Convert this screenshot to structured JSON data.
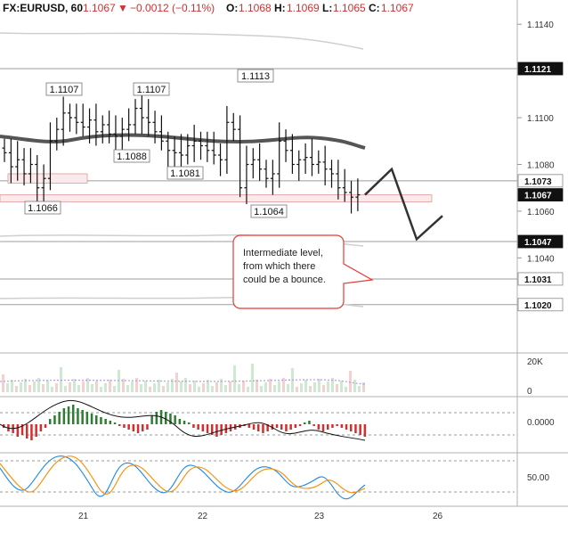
{
  "header": {
    "symbol": "FX:EURUSD, 60",
    "last": "1.1067",
    "change": "−0.0012 (−0.11%)",
    "o_label": "O:",
    "o": "1.1068",
    "h_label": "H:",
    "h": "1.1069",
    "l_label": "L:",
    "l": "1.1065",
    "c_label": "C:",
    "c": "1.1067"
  },
  "colors": {
    "up": "#2e7d32",
    "down": "#d32f2f",
    "level_line": "#9e9e9e",
    "price_tag": "#111111",
    "ma": "#555555",
    "callout_border": "#e53935"
  },
  "price_axis": {
    "ticks": [
      "1.1140",
      "1.1100",
      "1.1080",
      "1.1060",
      "1.1040"
    ],
    "tick_values": [
      1.114,
      1.11,
      1.108,
      1.106,
      1.104
    ],
    "tags": [
      {
        "label": "1.1121",
        "value": 1.1121,
        "style": "dark"
      },
      {
        "label": "1.1073",
        "value": 1.1073,
        "style": "light"
      },
      {
        "label": "1.1067",
        "value": 1.1067,
        "style": "dark"
      },
      {
        "label": "1.1047",
        "value": 1.1047,
        "style": "dark"
      },
      {
        "label": "1.1031",
        "value": 1.1031,
        "style": "light"
      },
      {
        "label": "1.1020",
        "value": 1.102,
        "style": "light"
      }
    ]
  },
  "volume_axis": {
    "ticks": [
      "20K",
      "0"
    ]
  },
  "indicator1_axis": {
    "ticks": [
      "0.0000"
    ]
  },
  "indicator2_axis": {
    "ticks": [
      "50.00"
    ]
  },
  "time_axis": {
    "ticks": [
      "21",
      "22",
      "23",
      "26"
    ]
  },
  "callout": {
    "lines": [
      "Intermediate level,",
      "from which there",
      "could be a bounce."
    ]
  },
  "chart_data": {
    "type": "candlestick",
    "symbol": "EURUSD",
    "interval": "60",
    "ylim": [
      1.1016,
      1.1148
    ],
    "horizontal_levels": [
      1.1121,
      1.1073,
      1.1047,
      1.1031,
      1.102
    ],
    "support_zones": [
      [
        1.1072,
        1.1076
      ],
      [
        1.1064,
        1.1067
      ]
    ],
    "price_annotations": [
      {
        "label": "1.1107",
        "value": 1.1107,
        "time_index": 9
      },
      {
        "label": "1.1107",
        "value": 1.1107,
        "time_index": 20
      },
      {
        "label": "1.1113",
        "value": 1.1113,
        "time_index": 34
      },
      {
        "label": "1.1088",
        "value": 1.1088,
        "time_index": 17
      },
      {
        "label": "1.1081",
        "value": 1.1081,
        "time_index": 26
      },
      {
        "label": "1.1066",
        "value": 1.1066,
        "time_index": 5
      },
      {
        "label": "1.1064",
        "value": 1.1064,
        "time_index": 36
      }
    ],
    "close": [
      1.1085,
      1.1079,
      1.1082,
      1.1076,
      1.108,
      1.107,
      1.1074,
      1.109,
      1.1095,
      1.1102,
      1.11,
      1.1098,
      1.1096,
      1.1099,
      1.1094,
      1.1097,
      1.1093,
      1.1092,
      1.1095,
      1.1097,
      1.1104,
      1.11,
      1.1098,
      1.1094,
      1.109,
      1.1086,
      1.1085,
      1.1084,
      1.1088,
      1.109,
      1.1088,
      1.1086,
      1.1084,
      1.1082,
      1.1098,
      1.1095,
      1.107,
      1.108,
      1.1082,
      1.1078,
      1.1074,
      1.1076,
      1.109,
      1.1086,
      1.108,
      1.1082,
      1.1083,
      1.108,
      1.1081,
      1.1078,
      1.1076,
      1.107,
      1.1068,
      1.1066,
      1.1067
    ],
    "projection": [
      {
        "time_index": 55,
        "value": 1.1067
      },
      {
        "time_index": 58,
        "value": 1.1078
      },
      {
        "time_index": 62,
        "value": 1.1048
      },
      {
        "time_index": 66,
        "value": 1.1058
      }
    ]
  }
}
